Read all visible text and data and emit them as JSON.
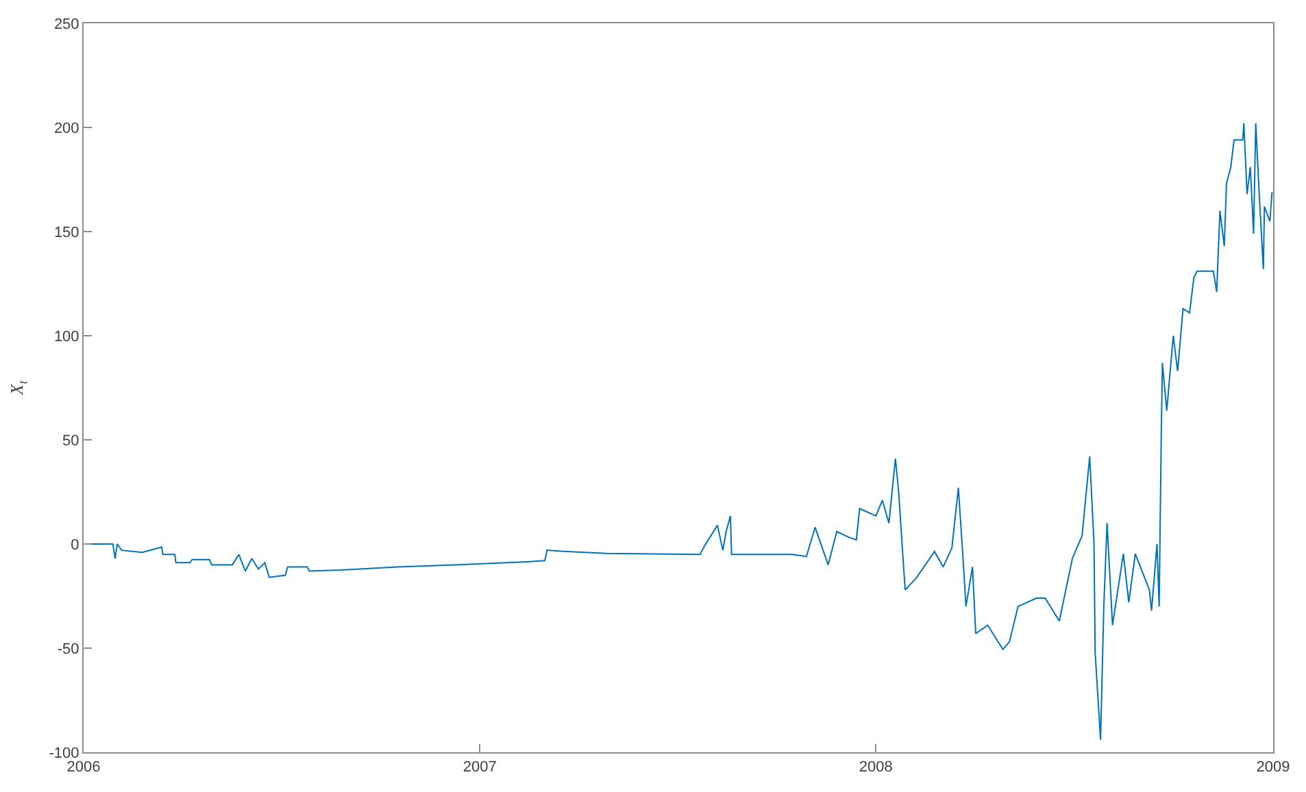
{
  "chart_data": {
    "type": "line",
    "ylabel": "X$_{t}$",
    "xlim": [
      "2006",
      "2009"
    ],
    "xticks": [
      "2006",
      "2007",
      "2008",
      "2009"
    ],
    "ylim": [
      -100,
      250
    ],
    "yticks": [
      -100,
      -50,
      0,
      50,
      100,
      150,
      200,
      250
    ],
    "marker": "none",
    "line_style": "solid",
    "series": [
      {
        "color": "#0072bd",
        "x": [
          "2006-01-06",
          "2006-01-28",
          "2006-01-30",
          "2006-02-01",
          "2006-02-05",
          "2006-02-24",
          "2006-03-14",
          "2006-03-15",
          "2006-03-26",
          "2006-03-27",
          "2006-04-09",
          "2006-04-11",
          "2006-04-27",
          "2006-04-29",
          "2006-05-18",
          "2006-05-24",
          "2006-05-30",
          "2006-06-05",
          "2006-06-11",
          "2006-06-17",
          "2006-06-21",
          "2006-07-06",
          "2006-07-08",
          "2006-07-26",
          "2006-07-28",
          "2006-08-26",
          "2006-10-17",
          "2006-12-09",
          "2007-02-16",
          "2007-03-02",
          "2007-03-04",
          "2007-03-19",
          "2007-04-28",
          "2007-07-23",
          "2007-07-27",
          "2007-08-08",
          "2007-08-13",
          "2007-08-16",
          "2007-08-20",
          "2007-08-21",
          "2007-10-16",
          "2007-10-29",
          "2007-11-06",
          "2007-11-18",
          "2007-11-26",
          "2007-12-08",
          "2007-12-14",
          "2007-12-17",
          "2008-01-01",
          "2008-01-07",
          "2008-01-13",
          "2008-01-19",
          "2008-01-22",
          "2008-01-26",
          "2008-01-28",
          "2008-02-07",
          "2008-02-24",
          "2008-03-03",
          "2008-03-11",
          "2008-03-17",
          "2008-03-21",
          "2008-03-24",
          "2008-03-30",
          "2008-04-02",
          "2008-04-13",
          "2008-04-27",
          "2008-05-03",
          "2008-05-11",
          "2008-05-28",
          "2008-06-05",
          "2008-06-18",
          "2008-06-24",
          "2008-06-30",
          "2008-07-09",
          "2008-07-16",
          "2008-07-20",
          "2008-07-21",
          "2008-07-26",
          "2008-07-29",
          "2008-08-01",
          "2008-08-06",
          "2008-08-16",
          "2008-08-21",
          "2008-08-27",
          "2008-09-09",
          "2008-09-11",
          "2008-09-16",
          "2008-09-18",
          "2008-09-20",
          "2008-09-21",
          "2008-09-25",
          "2008-10-01",
          "2008-10-05",
          "2008-10-10",
          "2008-10-16",
          "2008-10-20",
          "2008-10-23",
          "2008-11-07",
          "2008-11-10",
          "2008-11-13",
          "2008-11-17",
          "2008-11-19",
          "2008-11-23",
          "2008-11-26",
          "2008-12-04",
          "2008-12-05",
          "2008-12-08",
          "2008-12-11",
          "2008-12-14",
          "2008-12-16",
          "2008-12-19",
          "2008-12-23",
          "2008-12-24",
          "2008-12-29",
          "2008-12-31"
        ],
        "values": [
          0,
          0,
          -7,
          0,
          -3,
          -4,
          -1.5,
          -5,
          -5,
          -9,
          -9,
          -7.5,
          -7.5,
          -10,
          -10,
          -5,
          -13,
          -7,
          -12,
          -9,
          -16,
          -15,
          -11,
          -11,
          -13,
          -12.5,
          -11,
          -10,
          -8.5,
          -8,
          -3,
          -3.5,
          -4.5,
          -5,
          -1,
          9,
          -3,
          6,
          13.5,
          -5,
          -5,
          -6,
          8,
          -10,
          6,
          3,
          2,
          17,
          13.5,
          21,
          10,
          41,
          25,
          -7,
          -22,
          -16.5,
          -3.6,
          -11,
          -2,
          27,
          -4.7,
          -30,
          -11,
          -43,
          -39,
          -50.6,
          -47,
          -30,
          -26,
          -26,
          -37,
          -22,
          -7,
          4,
          42,
          0,
          -52,
          -94,
          -30,
          10,
          -39,
          -4.7,
          -28,
          -4.7,
          -22,
          -32,
          0,
          -30,
          55,
          87,
          64,
          100,
          83,
          113,
          111,
          128,
          131,
          131,
          121,
          160,
          143,
          173,
          181,
          194,
          194,
          202,
          168,
          181,
          149,
          202,
          170,
          132,
          162,
          155,
          169
        ]
      }
    ]
  }
}
